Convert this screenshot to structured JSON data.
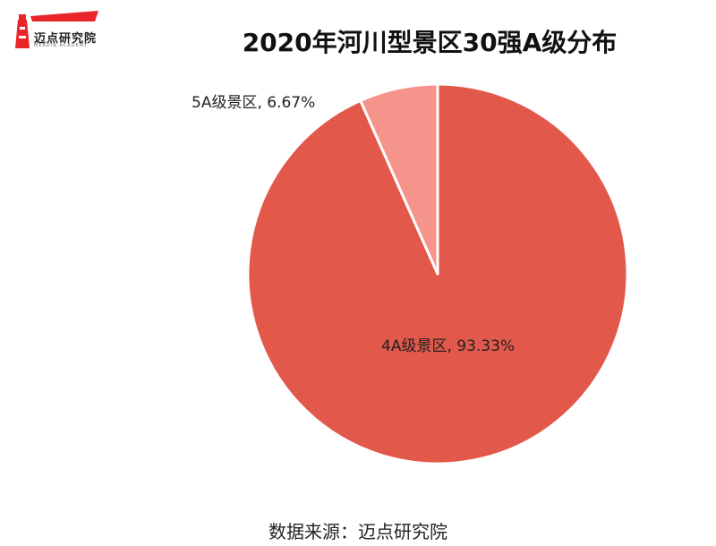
{
  "logo": {
    "text": "迈点研究院",
    "subtext": "MEADIN ACADEMY"
  },
  "title": "2020年河川型景区30强A级分布",
  "source": "数据来源：迈点研究院",
  "colors": {
    "slice_4a": "#E2584A",
    "slice_5a": "#F4948A",
    "logo_red": "#E8262A"
  },
  "chart_data": {
    "type": "pie",
    "title": "2020年河川型景区30强A级分布",
    "slices": [
      {
        "label": "4A级景区",
        "value": 93.33,
        "display": "4A级景区, 93.33%",
        "color": "#E2584A"
      },
      {
        "label": "5A级景区",
        "value": 6.67,
        "display": "5A级景区, 6.67%",
        "color": "#F4948A"
      }
    ]
  }
}
